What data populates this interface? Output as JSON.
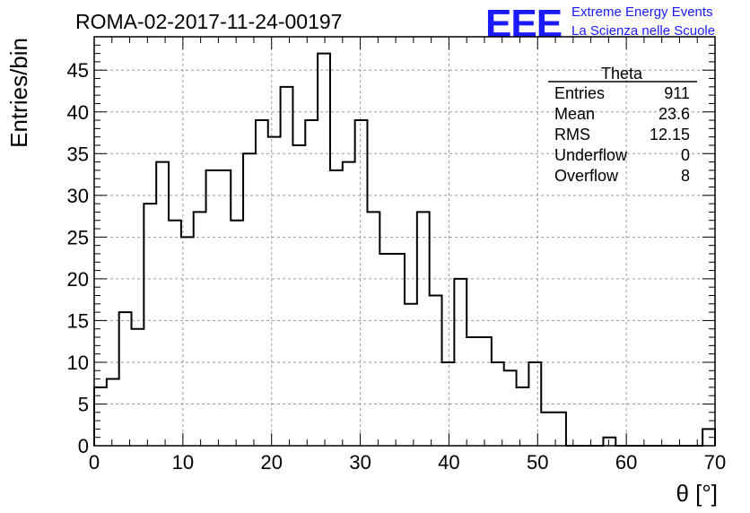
{
  "chart_data": {
    "type": "histogram",
    "title": "ROMA-02-2017-11-24-00197",
    "xlabel": "θ [°]",
    "ylabel": "Entries/bin",
    "xlim": [
      0,
      70
    ],
    "ylim": [
      0,
      49
    ],
    "grid": true,
    "bin_width": 1.4,
    "bin_edges_start": 0,
    "values": [
      7,
      8,
      16,
      14,
      29,
      34,
      27,
      25,
      28,
      33,
      33,
      27,
      35,
      39,
      37,
      43,
      36,
      39,
      47,
      33,
      34,
      39,
      28,
      23,
      23,
      17,
      28,
      18,
      10,
      20,
      13,
      13,
      10,
      9,
      7,
      10,
      4,
      4,
      0,
      0,
      0,
      1,
      0,
      0,
      0,
      0,
      0,
      0,
      0,
      2
    ],
    "x_ticks": [
      "0",
      "10",
      "20",
      "30",
      "40",
      "50",
      "60",
      "70"
    ],
    "y_ticks": [
      "0",
      "5",
      "10",
      "15",
      "20",
      "25",
      "30",
      "35",
      "40",
      "45"
    ],
    "stats_box": {
      "title": "Theta",
      "rows": [
        {
          "label": "Entries",
          "value": "911"
        },
        {
          "label": "Mean",
          "value": "23.6"
        },
        {
          "label": "RMS",
          "value": "12.15"
        },
        {
          "label": "Underflow",
          "value": "0"
        },
        {
          "label": "Overflow",
          "value": "8"
        }
      ]
    }
  },
  "logo": {
    "text": "EEE",
    "line1": "Extreme Energy Events",
    "line2": "La Scienza nelle Scuole",
    "color": "#1a1aff"
  }
}
